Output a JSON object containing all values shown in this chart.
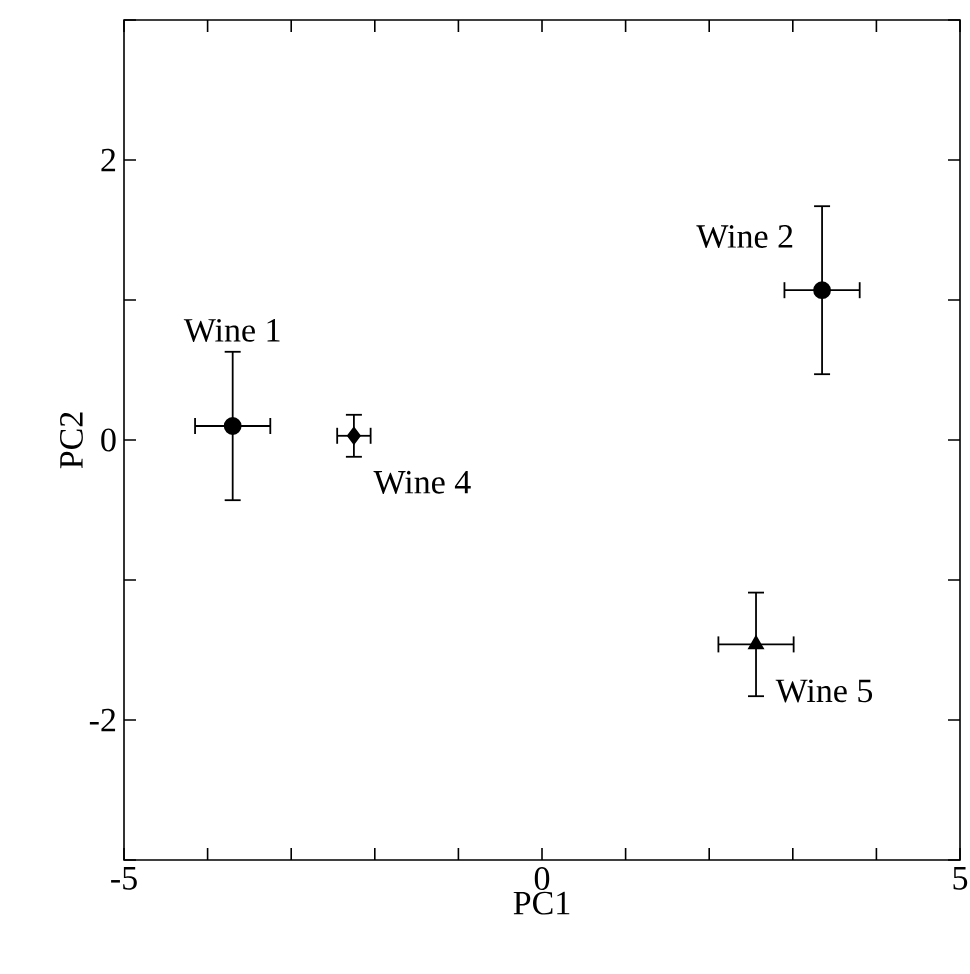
{
  "chart_data": {
    "type": "scatter",
    "xlabel": "PC1",
    "ylabel": "PC2",
    "xlim": [
      -5,
      5
    ],
    "ylim": [
      -3,
      3
    ],
    "xticks": [
      -5,
      {
        "value": -4,
        "label": null
      },
      {
        "value": -3,
        "label": null
      },
      {
        "value": -2,
        "label": null
      },
      {
        "value": -1,
        "label": null
      },
      0,
      {
        "value": 1,
        "label": null
      },
      {
        "value": 2,
        "label": null
      },
      {
        "value": 3,
        "label": null
      },
      {
        "value": 4,
        "label": null
      },
      5
    ],
    "yticks": [
      {
        "value": -3,
        "label": null
      },
      -2,
      {
        "value": -1,
        "label": null
      },
      0,
      {
        "value": 1,
        "label": null
      },
      2,
      {
        "value": 3,
        "label": null
      }
    ],
    "legend": false,
    "grid": false,
    "series": [
      {
        "name": "Wine 1",
        "color": "#000000",
        "marker": "circle",
        "x": [
          -3.7
        ],
        "values": [
          0.1
        ],
        "errors": [
          0.53
        ],
        "xerrors": [
          0.45
        ]
      },
      {
        "name": "Wine 4",
        "color": "#000000",
        "marker": "diamond",
        "x": [
          -2.25
        ],
        "values": [
          0.03
        ],
        "errors": [
          0.15
        ],
        "xerrors": [
          0.2
        ]
      },
      {
        "name": "Wine 2",
        "color": "#000000",
        "marker": "circle",
        "x": [
          3.35
        ],
        "values": [
          1.07
        ],
        "errors": [
          0.6
        ],
        "xerrors": [
          0.45
        ]
      },
      {
        "name": "Wine 5",
        "color": "#000000",
        "marker": "triangle",
        "x": [
          2.56
        ],
        "values": [
          -1.46
        ],
        "errors": [
          0.37
        ],
        "xerrors": [
          0.45
        ]
      }
    ]
  }
}
